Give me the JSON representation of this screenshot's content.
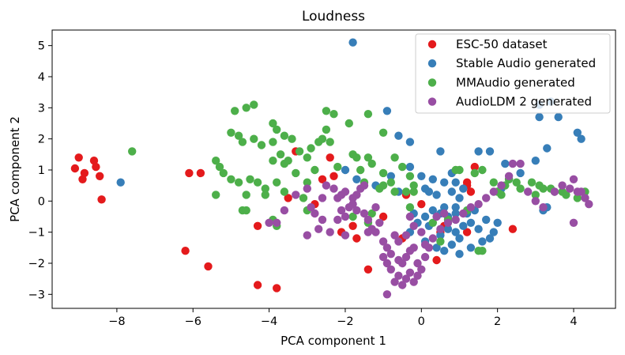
{
  "chart_data": {
    "type": "scatter",
    "title": "Loudness",
    "xlabel": "PCA component 1",
    "ylabel": "PCA component 2",
    "xlim": [
      -9.7,
      5.1
    ],
    "ylim": [
      -3.45,
      5.5
    ],
    "xticks": [
      -8,
      -6,
      -4,
      -2,
      0,
      2,
      4
    ],
    "yticks": [
      -3,
      -2,
      -1,
      0,
      1,
      2,
      3,
      4,
      5
    ],
    "grid": false,
    "legend_position": "top-right",
    "series": [
      {
        "name": "ESC-50 dataset",
        "color": "#e41a1c",
        "points": [
          [
            -9.0,
            1.4
          ],
          [
            -9.1,
            1.05
          ],
          [
            -8.85,
            0.9
          ],
          [
            -8.9,
            0.7
          ],
          [
            -8.6,
            1.3
          ],
          [
            -8.55,
            1.1
          ],
          [
            -8.45,
            0.8
          ],
          [
            -8.4,
            0.05
          ],
          [
            -6.1,
            0.9
          ],
          [
            -5.8,
            0.9
          ],
          [
            -6.2,
            -1.6
          ],
          [
            -5.6,
            -2.1
          ],
          [
            -4.3,
            -0.8
          ],
          [
            -4.3,
            -2.7
          ],
          [
            -3.8,
            -2.8
          ],
          [
            -3.3,
            1.6
          ],
          [
            -2.8,
            -0.1
          ],
          [
            -2.6,
            0.7
          ],
          [
            -2.3,
            0.8
          ],
          [
            -2.4,
            1.4
          ],
          [
            -1.8,
            -0.8
          ],
          [
            -1.7,
            -1.2
          ],
          [
            -2.1,
            -1.0
          ],
          [
            -1.4,
            -2.2
          ],
          [
            -1.0,
            -0.5
          ],
          [
            -0.4,
            0.2
          ],
          [
            -0.5,
            -1.2
          ],
          [
            0.0,
            -0.1
          ],
          [
            0.5,
            -1.0
          ],
          [
            0.6,
            -0.8
          ],
          [
            0.4,
            -1.9
          ],
          [
            1.2,
            0.5
          ],
          [
            1.2,
            0.6
          ],
          [
            1.3,
            0.3
          ],
          [
            1.2,
            -1.0
          ],
          [
            1.4,
            1.1
          ],
          [
            2.4,
            -0.9
          ],
          [
            -3.5,
            0.1
          ]
        ]
      },
      {
        "name": "Stable Audio generated",
        "color": "#377eb8",
        "points": [
          [
            -1.8,
            5.1
          ],
          [
            -7.9,
            0.6
          ],
          [
            -0.9,
            2.9
          ],
          [
            -0.6,
            2.1
          ],
          [
            -0.3,
            1.9
          ],
          [
            0.5,
            1.6
          ],
          [
            1.5,
            1.6
          ],
          [
            2.2,
            1.2
          ],
          [
            2.6,
            0.9
          ],
          [
            3.0,
            1.3
          ],
          [
            3.1,
            2.7
          ],
          [
            3.1,
            3.1
          ],
          [
            3.4,
            3.2
          ],
          [
            3.6,
            2.7
          ],
          [
            4.1,
            2.2
          ],
          [
            4.2,
            2.0
          ],
          [
            3.3,
            1.7
          ],
          [
            1.8,
            1.6
          ],
          [
            3.3,
            -0.2
          ],
          [
            3.2,
            -0.3
          ],
          [
            -2.0,
            1.0
          ],
          [
            -1.7,
            0.7
          ],
          [
            -1.2,
            0.5
          ],
          [
            -0.8,
            0.8
          ],
          [
            -0.6,
            0.3
          ],
          [
            -0.3,
            1.1
          ],
          [
            0.0,
            0.8
          ],
          [
            0.1,
            0.4
          ],
          [
            0.2,
            0.3
          ],
          [
            0.4,
            0.2
          ],
          [
            0.3,
            0.7
          ],
          [
            0.6,
            0.6
          ],
          [
            0.8,
            0.9
          ],
          [
            0.9,
            0.6
          ],
          [
            1.1,
            0.4
          ],
          [
            1.0,
            0.1
          ],
          [
            0.9,
            -0.2
          ],
          [
            0.7,
            -0.5
          ],
          [
            0.5,
            -0.4
          ],
          [
            0.3,
            -0.3
          ],
          [
            0.1,
            -0.5
          ],
          [
            -0.1,
            -0.7
          ],
          [
            -0.2,
            -0.4
          ],
          [
            -0.3,
            -1.0
          ],
          [
            0.1,
            -1.3
          ],
          [
            0.4,
            -1.5
          ],
          [
            0.8,
            -1.4
          ],
          [
            1.0,
            -1.2
          ],
          [
            1.3,
            -1.5
          ],
          [
            1.6,
            -1.3
          ],
          [
            1.8,
            -1.2
          ],
          [
            1.9,
            -1.0
          ],
          [
            2.0,
            -0.7
          ],
          [
            1.7,
            -0.6
          ],
          [
            1.5,
            -0.9
          ],
          [
            1.3,
            -0.7
          ],
          [
            1.1,
            -0.8
          ],
          [
            0.9,
            -1.0
          ],
          [
            0.7,
            -0.9
          ],
          [
            0.5,
            -1.1
          ],
          [
            0.6,
            -1.6
          ],
          [
            1.0,
            -1.7
          ],
          [
            0.2,
            -0.8
          ],
          [
            2.1,
            0.4
          ],
          [
            2.3,
            0.7
          ],
          [
            0.9,
            -0.4
          ],
          [
            1.2,
            -0.4
          ],
          [
            0.6,
            -0.2
          ],
          [
            1.4,
            -0.3
          ],
          [
            0.8,
            0.3
          ]
        ]
      },
      {
        "name": "MMAudio generated",
        "color": "#4daf4a",
        "points": [
          [
            -7.6,
            1.6
          ],
          [
            -4.9,
            2.9
          ],
          [
            -4.6,
            3.0
          ],
          [
            -4.4,
            3.1
          ],
          [
            -5.0,
            2.2
          ],
          [
            -4.8,
            2.1
          ],
          [
            -4.7,
            1.9
          ],
          [
            -4.4,
            2.0
          ],
          [
            -4.2,
            1.8
          ],
          [
            -3.9,
            2.5
          ],
          [
            -3.8,
            2.3
          ],
          [
            -3.9,
            1.9
          ],
          [
            -3.6,
            2.1
          ],
          [
            -3.4,
            2.0
          ],
          [
            -3.7,
            1.5
          ],
          [
            -3.9,
            1.3
          ],
          [
            -3.6,
            1.2
          ],
          [
            -3.2,
            1.6
          ],
          [
            -3.0,
            1.4
          ],
          [
            -2.9,
            1.7
          ],
          [
            -2.7,
            1.9
          ],
          [
            -2.5,
            2.3
          ],
          [
            -2.6,
            2.0
          ],
          [
            -2.4,
            1.9
          ],
          [
            -2.5,
            2.9
          ],
          [
            -2.3,
            2.8
          ],
          [
            -1.9,
            2.5
          ],
          [
            -2.2,
            1.1
          ],
          [
            -1.8,
            1.5
          ],
          [
            -1.7,
            1.4
          ],
          [
            -1.4,
            1.4
          ],
          [
            -1.3,
            1.2
          ],
          [
            -1.6,
            1.0
          ],
          [
            -1.0,
            0.9
          ],
          [
            -0.8,
            0.6
          ],
          [
            -0.7,
            1.4
          ],
          [
            -0.5,
            1.1
          ],
          [
            -0.3,
            0.8
          ],
          [
            -0.2,
            0.5
          ],
          [
            -0.4,
            0.3
          ],
          [
            -0.2,
            0.3
          ],
          [
            -5.4,
            1.3
          ],
          [
            -5.3,
            1.1
          ],
          [
            -5.2,
            0.9
          ],
          [
            -5.0,
            0.7
          ],
          [
            -4.8,
            0.6
          ],
          [
            -4.5,
            0.7
          ],
          [
            -4.3,
            0.6
          ],
          [
            -4.1,
            0.4
          ],
          [
            -4.1,
            0.2
          ],
          [
            -3.8,
            0.6
          ],
          [
            -3.6,
            0.3
          ],
          [
            -4.6,
            0.2
          ],
          [
            -5.4,
            0.2
          ],
          [
            -4.7,
            -0.3
          ],
          [
            -4.6,
            -0.3
          ],
          [
            -3.9,
            -0.6
          ],
          [
            -3.8,
            -0.8
          ],
          [
            -3.0,
            -0.3
          ],
          [
            -3.1,
            0.1
          ],
          [
            -3.0,
            0.6
          ],
          [
            -3.3,
            0.9
          ],
          [
            -1.8,
            -0.5
          ],
          [
            -1.4,
            -0.7
          ],
          [
            -1.3,
            -0.4
          ],
          [
            -1.1,
            0.4
          ],
          [
            -1.0,
            0.5
          ],
          [
            -1.5,
            0.6
          ],
          [
            -1.4,
            2.8
          ],
          [
            -1.0,
            2.2
          ],
          [
            -3.5,
            1.3
          ],
          [
            -2.8,
            1.0
          ],
          [
            -0.7,
            0.3
          ],
          [
            -0.3,
            -0.2
          ],
          [
            0.5,
            -1.3
          ],
          [
            0.3,
            -0.7
          ],
          [
            0.7,
            -0.6
          ],
          [
            1.2,
            -0.3
          ],
          [
            1.6,
            -1.6
          ],
          [
            1.5,
            -1.6
          ],
          [
            1.9,
            0.6
          ],
          [
            2.0,
            0.3
          ],
          [
            2.1,
            0.2
          ],
          [
            2.3,
            0.7
          ],
          [
            2.5,
            0.6
          ],
          [
            2.6,
            0.4
          ],
          [
            2.2,
            0.5
          ],
          [
            2.9,
            0.6
          ],
          [
            3.1,
            0.5
          ],
          [
            3.2,
            0.4
          ],
          [
            3.0,
            0.2
          ],
          [
            3.4,
            0.4
          ],
          [
            3.5,
            0.3
          ],
          [
            3.7,
            0.3
          ],
          [
            3.8,
            0.2
          ],
          [
            4.1,
            0.1
          ],
          [
            4.3,
            0.3
          ],
          [
            0.9,
            1.0
          ],
          [
            1.0,
            1.0
          ],
          [
            1.4,
            0.9
          ],
          [
            1.6,
            1.0
          ]
        ]
      },
      {
        "name": "AudioLDM 2 generated",
        "color": "#984ea3",
        "points": [
          [
            -4.0,
            -0.7
          ],
          [
            -3.6,
            -0.3
          ],
          [
            -3.3,
            0.2
          ],
          [
            -3.0,
            0.4
          ],
          [
            -2.9,
            -0.2
          ],
          [
            -2.8,
            -0.4
          ],
          [
            -2.7,
            -0.9
          ],
          [
            -3.0,
            -1.1
          ],
          [
            -2.6,
            0.1
          ],
          [
            -2.5,
            0.5
          ],
          [
            -2.3,
            0.4
          ],
          [
            -2.2,
            0.1
          ],
          [
            -2.1,
            0.2
          ],
          [
            -2.0,
            0.3
          ],
          [
            -2.1,
            -0.3
          ],
          [
            -2.0,
            -0.5
          ],
          [
            -1.9,
            -0.2
          ],
          [
            -1.8,
            0.1
          ],
          [
            -1.7,
            0.2
          ],
          [
            -1.6,
            0.4
          ],
          [
            -1.5,
            -0.4
          ],
          [
            -1.4,
            -0.6
          ],
          [
            -1.3,
            -0.9
          ],
          [
            -1.2,
            -1.0
          ],
          [
            -1.1,
            -0.7
          ],
          [
            -1.0,
            -1.3
          ],
          [
            -0.9,
            -1.5
          ],
          [
            -0.8,
            -1.7
          ],
          [
            -0.6,
            -1.9
          ],
          [
            -0.5,
            -2.0
          ],
          [
            -0.4,
            -1.8
          ],
          [
            -0.3,
            -1.6
          ],
          [
            -0.2,
            -1.5
          ],
          [
            -0.1,
            -2.0
          ],
          [
            0.0,
            -2.2
          ],
          [
            -0.1,
            -2.4
          ],
          [
            -0.2,
            -2.6
          ],
          [
            -0.4,
            -2.5
          ],
          [
            -0.6,
            -2.4
          ],
          [
            -0.8,
            -2.2
          ],
          [
            -0.9,
            -2.0
          ],
          [
            -1.0,
            -1.8
          ],
          [
            -0.7,
            -2.6
          ],
          [
            -0.9,
            -3.0
          ],
          [
            -0.5,
            -2.7
          ],
          [
            -0.3,
            -2.3
          ],
          [
            0.1,
            -1.8
          ],
          [
            0.2,
            -1.5
          ],
          [
            0.3,
            -1.2
          ],
          [
            0.5,
            -0.9
          ],
          [
            0.7,
            -0.7
          ],
          [
            0.9,
            -0.6
          ],
          [
            1.1,
            -0.4
          ],
          [
            1.3,
            -0.2
          ],
          [
            1.5,
            -0.1
          ],
          [
            1.7,
            0.1
          ],
          [
            1.9,
            0.3
          ],
          [
            2.1,
            0.5
          ],
          [
            2.3,
            0.8
          ],
          [
            2.4,
            1.2
          ],
          [
            2.6,
            1.2
          ],
          [
            2.8,
            0.3
          ],
          [
            3.0,
            0.0
          ],
          [
            3.2,
            -0.2
          ],
          [
            3.5,
            0.3
          ],
          [
            3.7,
            0.5
          ],
          [
            3.9,
            0.4
          ],
          [
            4.0,
            0.7
          ],
          [
            4.1,
            0.3
          ],
          [
            4.2,
            0.3
          ],
          [
            4.3,
            0.1
          ],
          [
            4.4,
            -0.1
          ],
          [
            4.0,
            -0.7
          ],
          [
            -1.4,
            -1.0
          ],
          [
            -1.2,
            -0.2
          ],
          [
            -2.4,
            -1.0
          ],
          [
            -2.6,
            -0.6
          ],
          [
            -1.8,
            -0.1
          ],
          [
            -0.2,
            -0.8
          ],
          [
            0.0,
            -1.0
          ],
          [
            0.1,
            -1.4
          ],
          [
            -0.4,
            -1.1
          ],
          [
            -0.6,
            -1.3
          ],
          [
            -1.5,
            0.5
          ],
          [
            -1.7,
            -0.3
          ],
          [
            -2.2,
            -0.6
          ],
          [
            -3.8,
            -0.7
          ],
          [
            -2.0,
            -1.1
          ],
          [
            -0.7,
            -1.1
          ],
          [
            -0.3,
            -0.5
          ],
          [
            0.4,
            -0.5
          ],
          [
            0.6,
            -0.4
          ]
        ]
      }
    ]
  }
}
